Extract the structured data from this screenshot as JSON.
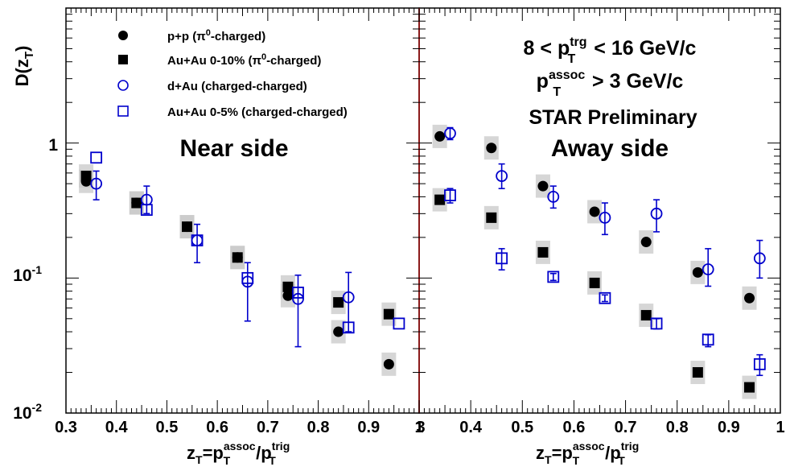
{
  "chart_data": {
    "type": "scatter",
    "yscale": "log",
    "ylim": [
      0.01,
      10
    ],
    "ylabel": "D(z_T)",
    "yticks": [
      {
        "value": 0.01,
        "base": "10",
        "exp": "-2"
      },
      {
        "value": 0.1,
        "base": "10",
        "exp": "-1"
      },
      {
        "value": 1,
        "base": "1",
        "exp": ""
      }
    ],
    "xlabel": {
      "main": "z",
      "sub1": "T",
      "eq": "=p",
      "sup1": "assoc",
      "sub2": "T",
      "slash": "/p",
      "sup2": "trig",
      "sub3": "T"
    },
    "legend": [
      {
        "label_pre": "p+p (",
        "pi": "π",
        "sup": "0",
        "label_post": "-charged)",
        "marker": "filled-circle",
        "color": "#000000"
      },
      {
        "label_pre": "Au+Au 0-10% (",
        "pi": "π",
        "sup": "0",
        "label_post": "-charged)",
        "marker": "filled-square",
        "color": "#000000"
      },
      {
        "label_pre": "d+Au (charged-charged)",
        "pi": "",
        "sup": "",
        "label_post": "",
        "marker": "open-circle",
        "color": "#0000cc"
      },
      {
        "label_pre": "Au+Au 0-5% (charged-charged)",
        "pi": "",
        "sup": "",
        "label_post": "",
        "marker": "open-square",
        "color": "#0000cc"
      }
    ],
    "trigger_text": {
      "line1_a": "8 < p",
      "line1_sup": "trg",
      "line1_sub": "T",
      "line1_b": " < 16 GeV/c",
      "line2_a": "p",
      "line2_sup": "assoc",
      "line2_sub": "T",
      "line2_b": " > 3 GeV/c",
      "line3": "STAR Preliminary"
    },
    "panels": [
      {
        "title": "Near side",
        "xlim": [
          0.3,
          1.0
        ],
        "xticks": [
          "0.3",
          "0.4",
          "0.5",
          "0.6",
          "0.7",
          "0.8",
          "0.9",
          "1"
        ],
        "series": [
          {
            "name": "p+p (π0-charged)",
            "marker": "filled-circle",
            "color": "#000000",
            "sys": true,
            "x": [
              0.34,
              0.44,
              0.54,
              0.64,
              0.74,
              0.84,
              0.94
            ],
            "y": [
              0.52,
              0.36,
              0.24,
              0.142,
              0.074,
              0.04,
              0.023
            ]
          },
          {
            "name": "Au+Au 0-10% (π0-charged)",
            "marker": "filled-square",
            "color": "#000000",
            "sys": true,
            "x": [
              0.34,
              0.44,
              0.54,
              0.64,
              0.74,
              0.84,
              0.94
            ],
            "y": [
              0.57,
              0.36,
              0.24,
              0.142,
              0.086,
              0.066,
              0.054
            ]
          },
          {
            "name": "d+Au (charged-charged)",
            "marker": "open-circle",
            "color": "#0000cc",
            "sys": false,
            "x": [
              0.36,
              0.46,
              0.56,
              0.66,
              0.76,
              0.86
            ],
            "y": [
              0.5,
              0.38,
              0.19,
              0.094,
              0.07,
              0.072
            ],
            "err_up": [
              0.62,
              0.48,
              0.25,
              0.13,
              0.105,
              0.11
            ],
            "err_lo": [
              0.38,
              0.3,
              0.13,
              0.048,
              0.031,
              0.04
            ]
          },
          {
            "name": "Au+Au 0-5% (charged-charged)",
            "marker": "open-square",
            "color": "#0000cc",
            "sys": false,
            "x": [
              0.36,
              0.46,
              0.56,
              0.66,
              0.76,
              0.86,
              0.96
            ],
            "y": [
              0.78,
              0.32,
              0.19,
              0.1,
              0.078,
              0.043,
              0.046
            ]
          }
        ]
      },
      {
        "title": "Away side",
        "xlim": [
          0.3,
          1.0
        ],
        "xticks": [
          "",
          "0.4",
          "0.5",
          "0.6",
          "0.7",
          "0.8",
          "0.9",
          "1"
        ],
        "xticks_partial": {
          "label": "3",
          "value": 0.3
        },
        "series": [
          {
            "name": "p+p (π0-charged)",
            "marker": "filled-circle",
            "color": "#000000",
            "sys": true,
            "x": [
              0.34,
              0.44,
              0.54,
              0.64,
              0.74,
              0.84,
              0.94
            ],
            "y": [
              1.12,
              0.92,
              0.48,
              0.31,
              0.185,
              0.11,
              0.071
            ]
          },
          {
            "name": "Au+Au 0-10% (π0-charged)",
            "marker": "filled-square",
            "color": "#000000",
            "sys": true,
            "x": [
              0.34,
              0.44,
              0.54,
              0.64,
              0.74,
              0.84,
              0.94
            ],
            "y": [
              0.38,
              0.28,
              0.155,
              0.092,
              0.053,
              0.02,
              0.0155
            ]
          },
          {
            "name": "d+Au (charged-charged)",
            "marker": "open-circle",
            "color": "#0000cc",
            "sys": false,
            "x": [
              0.36,
              0.46,
              0.56,
              0.66,
              0.76,
              0.86,
              0.96
            ],
            "y": [
              1.18,
              0.57,
              0.4,
              0.28,
              0.3,
              0.116,
              0.14
            ],
            "err_up": [
              1.3,
              0.7,
              0.48,
              0.36,
              0.38,
              0.165,
              0.19
            ],
            "err_lo": [
              1.06,
              0.46,
              0.33,
              0.21,
              0.22,
              0.087,
              0.1
            ]
          },
          {
            "name": "Au+Au 0-5% (charged-charged)",
            "marker": "open-square",
            "color": "#0000cc",
            "sys": false,
            "x": [
              0.36,
              0.46,
              0.56,
              0.66,
              0.76,
              0.86,
              0.96
            ],
            "y": [
              0.41,
              0.14,
              0.102,
              0.071,
              0.046,
              0.035,
              0.023
            ],
            "err_up": [
              0.46,
              0.165,
              0.108,
              0.075,
              0.05,
              0.038,
              0.027
            ],
            "err_lo": [
              0.36,
              0.115,
              0.096,
              0.067,
              0.042,
              0.031,
              0.019
            ]
          }
        ]
      }
    ]
  }
}
